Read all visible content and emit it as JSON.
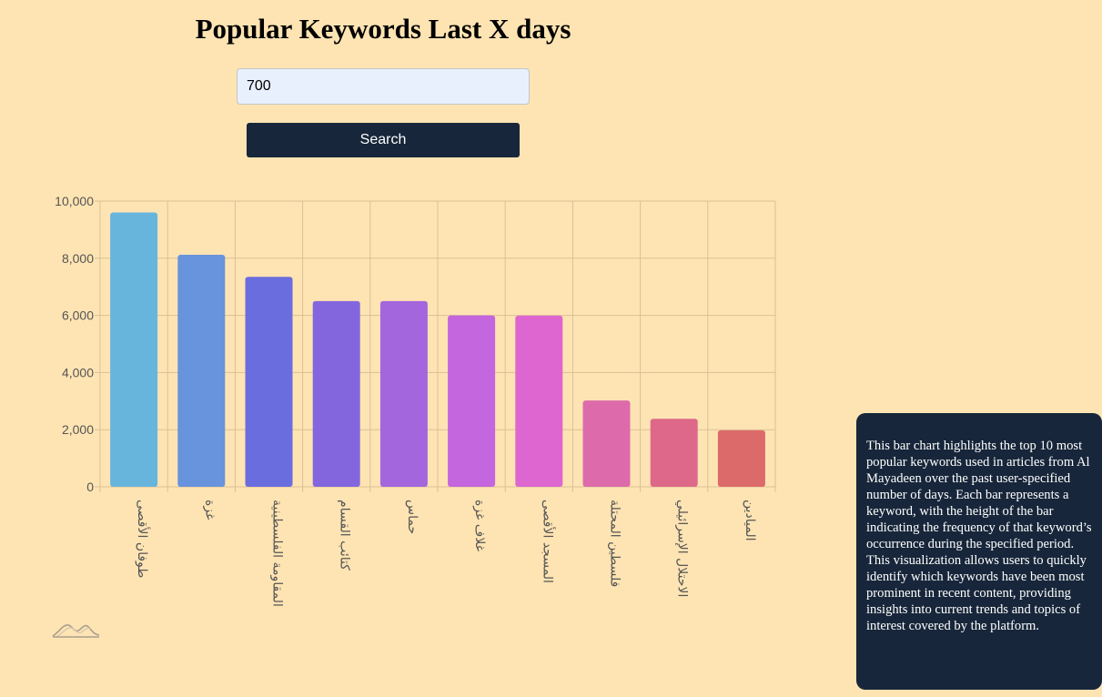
{
  "page": {
    "title": "Popular Keywords Last X days",
    "description": "This bar chart highlights the top 10 most popular keywords used in articles from Al Mayadeen over the past user-specified number of days. Each bar represents a keyword, with the height of the bar indicating the frequency of that keyword’s occurrence during the specified period. This visualization allows users to quickly identify which keywords have been most prominent in recent content, providing insights into current trends and topics of interest covered by the platform."
  },
  "search": {
    "days_value": "700",
    "button_label": "Search"
  },
  "chart_data": {
    "type": "bar",
    "title": "",
    "xlabel": "",
    "ylabel": "",
    "ylim": [
      0,
      10000
    ],
    "yticks": [
      0,
      2000,
      4000,
      6000,
      8000,
      10000
    ],
    "ytick_labels": [
      "0",
      "2,000",
      "4,000",
      "6,000",
      "8,000",
      "10,000"
    ],
    "grid": true,
    "legend": "none",
    "categories": [
      "طوفان الأقصى",
      "غزة",
      "المقاومة الفلسطينية",
      "كتائب القسام",
      "حماس",
      "غلاف غزة",
      "المسجد الأقصى",
      "فلسطين المحتلة",
      "الاحتلال الإسرائيلي",
      "الميادين"
    ],
    "values": [
      9600,
      8120,
      7350,
      6500,
      6500,
      6000,
      5990,
      3020,
      2380,
      1980
    ],
    "colors": [
      "#67b5dd",
      "#6893dd",
      "#6a6ddd",
      "#8366dd",
      "#a366dd",
      "#c466dd",
      "#dd66d1",
      "#dd6bab",
      "#dd688a",
      "#dd6a6a"
    ]
  },
  "colors": {
    "background": "#ffe4b3",
    "button": "#17263a",
    "input_bg": "#e8f0fe",
    "panel": "#17263a",
    "grid": "#d8c196"
  },
  "icons": {
    "logo": "mountain-wave-logo-icon"
  }
}
